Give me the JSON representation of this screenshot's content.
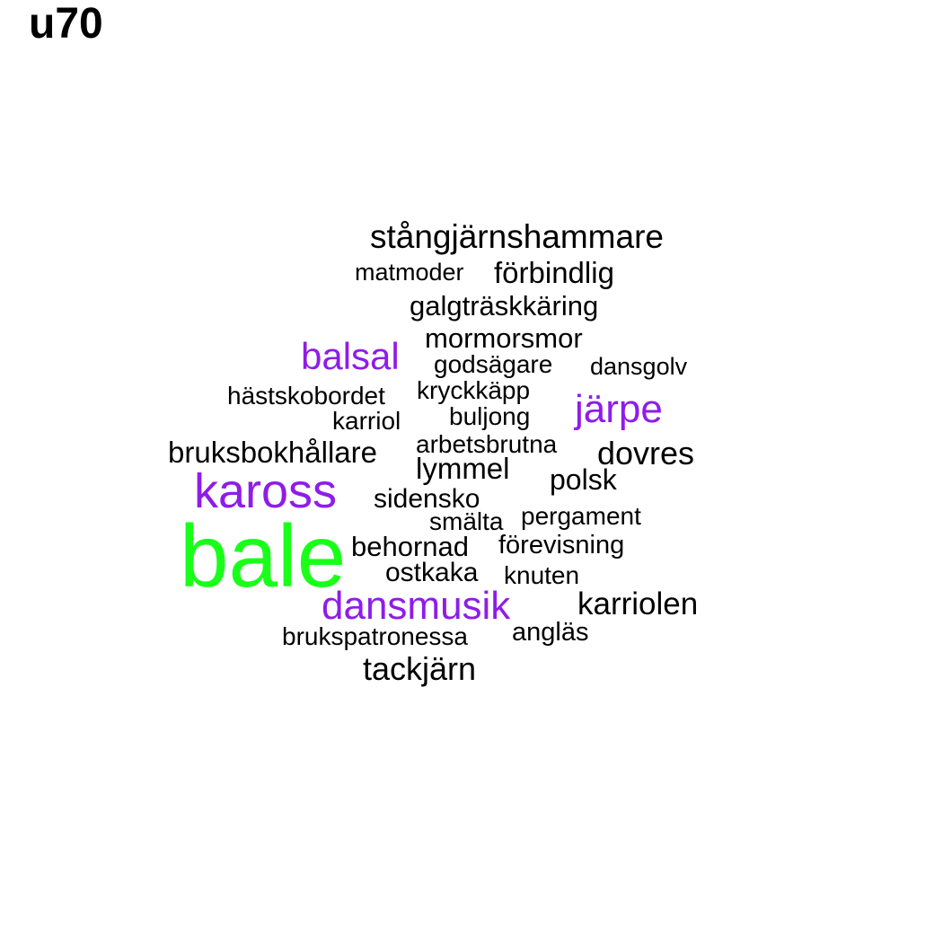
{
  "title": "u70",
  "colors": {
    "black": "#000000",
    "purple": "#8f1ce8",
    "green": "#1aff1a"
  },
  "words": [
    {
      "text": "stångjärnshammare"
    },
    {
      "text": "matmoder"
    },
    {
      "text": "förbindlig"
    },
    {
      "text": "galgträskkäring"
    },
    {
      "text": "mormorsmor"
    },
    {
      "text": "balsal"
    },
    {
      "text": "godsägare"
    },
    {
      "text": "dansgolv"
    },
    {
      "text": "hästskobordet"
    },
    {
      "text": "kryckkäpp"
    },
    {
      "text": "järpe"
    },
    {
      "text": "karriol"
    },
    {
      "text": "buljong"
    },
    {
      "text": "arbetsbrutna"
    },
    {
      "text": "bruksbokhållare"
    },
    {
      "text": "dovres"
    },
    {
      "text": "lymmel"
    },
    {
      "text": "kaross"
    },
    {
      "text": "polsk"
    },
    {
      "text": "sidensko"
    },
    {
      "text": "smälta"
    },
    {
      "text": "pergament"
    },
    {
      "text": "bale"
    },
    {
      "text": "behornad"
    },
    {
      "text": "förevisning"
    },
    {
      "text": "ostkaka"
    },
    {
      "text": "knuten"
    },
    {
      "text": "dansmusik"
    },
    {
      "text": "karriolen"
    },
    {
      "text": "brukspatronessa"
    },
    {
      "text": "angläs"
    },
    {
      "text": "tackjärn"
    }
  ]
}
